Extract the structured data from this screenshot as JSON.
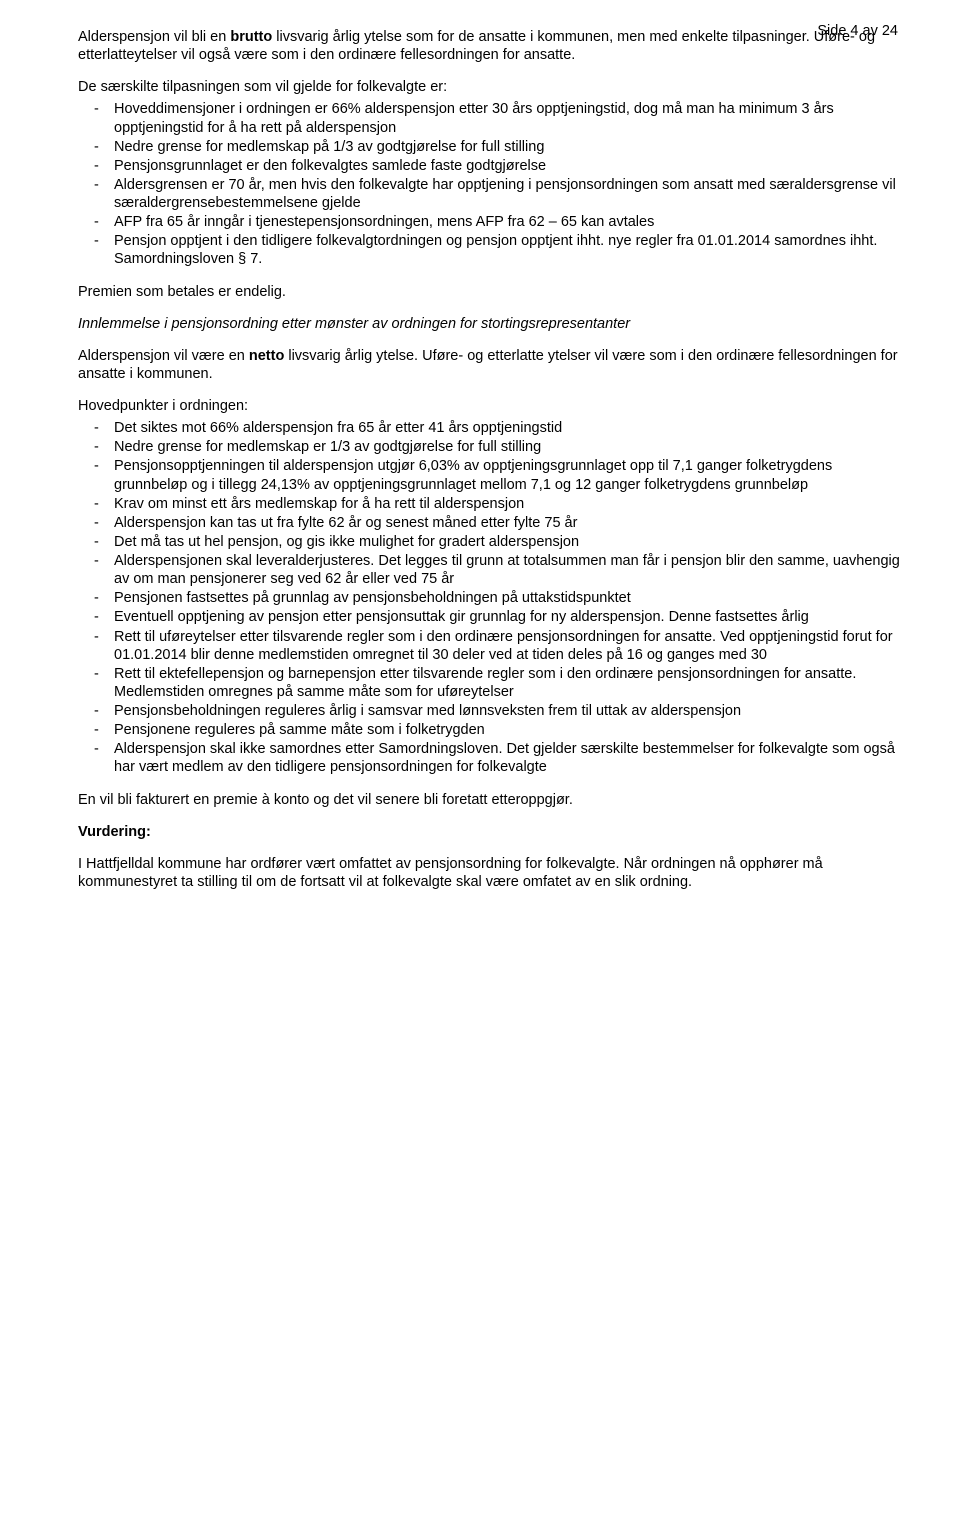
{
  "page_number": "Side 4 av 24",
  "p1_a": "Alderspensjon vil bli en ",
  "p1_b": "brutto",
  "p1_c": " livsvarig årlig ytelse som for de ansatte i kommunen, men med enkelte tilpasninger. Uføre- og etterlatteytelser vil også være som i den ordinære fellesordningen for ansatte.",
  "p2": "De særskilte tilpasningen som vil gjelde for folkevalgte er:",
  "list1": [
    "Hoveddimensjoner i ordningen er 66% alderspensjon etter 30 års opptjeningstid, dog må man ha minimum 3 års opptjeningstid for å ha rett på alderspensjon",
    "Nedre grense for medlemskap på 1/3 av godtgjørelse for full stilling",
    "Pensjonsgrunnlaget er den folkevalgtes samlede faste godtgjørelse",
    "Aldersgrensen er 70 år, men hvis den folkevalgte har opptjening i pensjonsordningen som ansatt med særaldersgrense vil særaldergrensebestemmelsene gjelde",
    "AFP fra 65 år inngår i tjenestepensjonsordningen, mens AFP fra 62 – 65 kan avtales",
    "Pensjon opptjent i den tidligere folkevalgtordningen og pensjon opptjent ihht. nye regler fra 01.01.2014 samordnes ihht. Samordningsloven § 7."
  ],
  "p3": "Premien som betales er endelig.",
  "p4": "Innlemmelse i pensjonsordning etter mønster av ordningen for stortingsrepresentanter",
  "p5_a": "Alderspensjon vil være en ",
  "p5_b": "netto",
  "p5_c": " livsvarig årlig ytelse. Uføre- og etterlatte ytelser vil være som i den ordinære fellesordningen for ansatte i kommunen.",
  "p6": "Hovedpunkter i ordningen:",
  "list2": [
    "Det siktes mot 66% alderspensjon fra 65 år etter 41 års opptjeningstid",
    "Nedre grense for medlemskap er 1/3 av godtgjørelse for full stilling",
    "Pensjonsopptjenningen til alderspensjon utgjør 6,03% av opptjeningsgrunnlaget opp til 7,1 ganger folketrygdens grunnbeløp og i tillegg 24,13% av opptjeningsgrunnlaget mellom 7,1 og 12 ganger folketrygdens grunnbeløp",
    "Krav om minst ett års medlemskap for å ha rett til alderspensjon",
    "Alderspensjon kan tas ut fra fylte 62 år og senest måned etter fylte 75 år",
    "Det må tas ut hel pensjon, og gis ikke mulighet for gradert alderspensjon",
    "Alderspensjonen skal leveralderjusteres.  Det legges til grunn at totalsummen man får i pensjon blir den samme, uavhengig av om man pensjonerer seg ved 62 år eller ved 75 år",
    "Pensjonen fastsettes på grunnlag av pensjonsbeholdningen på uttakstidspunktet",
    "Eventuell opptjening av pensjon etter pensjonsuttak gir grunnlag for ny alderspensjon. Denne fastsettes årlig",
    "Rett til uføreytelser etter tilsvarende regler som i den ordinære pensjonsordningen for ansatte. Ved opptjeningstid forut for 01.01.2014 blir denne medlemstiden omregnet til 30 deler ved at tiden deles på 16 og ganges med 30",
    "Rett til ektefellepensjon og barnepensjon etter tilsvarende regler som i den ordinære pensjonsordningen for ansatte. Medlemstiden omregnes på samme måte som for uføreytelser",
    "Pensjonsbeholdningen reguleres årlig i samsvar med lønnsveksten frem til uttak av alderspensjon",
    "Pensjonene reguleres på samme måte som i folketrygden",
    "Alderspensjon skal ikke samordnes etter Samordningsloven. Det gjelder særskilte bestemmelser for folkevalgte som også har vært medlem av den tidligere pensjonsordningen for folkevalgte"
  ],
  "p7": "En vil bli fakturert en premie à konto og det vil senere bli foretatt etteroppgjør.",
  "heading_vurdering": "Vurdering:",
  "p8": "I Hattfjelldal kommune har ordfører vært omfattet av pensjonsordning for folkevalgte. Når ordningen nå opphører må kommunestyret ta stilling til om de fortsatt vil at folkevalgte skal være omfatet av en slik ordning."
}
